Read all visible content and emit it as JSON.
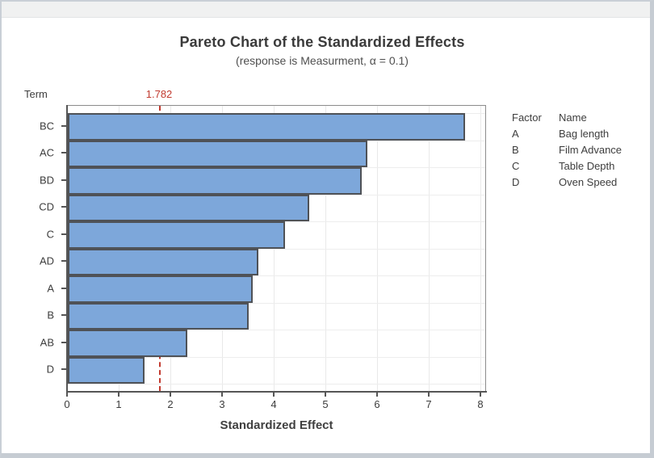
{
  "chart_data": {
    "type": "bar",
    "orientation": "horizontal",
    "title": "Pareto Chart of the Standardized Effects",
    "subtitle": "(response is Measurment, α = 0.1)",
    "xlabel": "Standardized Effect",
    "ylabel": "Term",
    "categories": [
      "BC",
      "AC",
      "BD",
      "CD",
      "C",
      "AD",
      "A",
      "B",
      "AB",
      "D"
    ],
    "values": [
      7.69,
      5.8,
      5.69,
      4.67,
      4.2,
      3.69,
      3.58,
      3.5,
      2.31,
      1.48
    ],
    "xlim": [
      0,
      8.11
    ],
    "xticks": [
      0,
      1,
      2,
      3,
      4,
      5,
      6,
      7,
      8
    ],
    "grid": "both",
    "legend_position": "right",
    "reference_line": {
      "value": 1.782,
      "label": "1.782"
    },
    "colors": {
      "bar_fill": "#7da7da",
      "bar_border": "#4f5257",
      "reference": "#c23b30",
      "gridline": "#e9e9e9",
      "axis": "#565656"
    }
  },
  "legend": {
    "headers": [
      "Factor",
      "Name"
    ],
    "rows": [
      [
        "A",
        "Bag length"
      ],
      [
        "B",
        "Film Advance"
      ],
      [
        "C",
        "Table Depth"
      ],
      [
        "D",
        "Oven Speed"
      ]
    ]
  }
}
